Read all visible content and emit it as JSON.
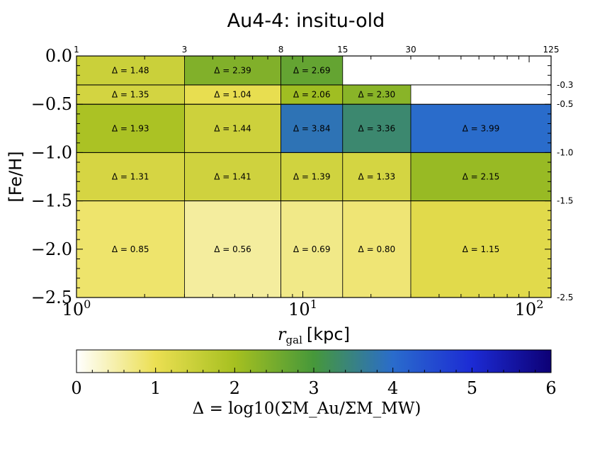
{
  "chart_data": {
    "type": "heatmap",
    "title": "Au4-4:  insitu-old",
    "xlabel": "r_gal [kpc]",
    "xlabel_main": "r",
    "xlabel_sub": "gal",
    "xlabel_unit": "[kpc]",
    "ylabel": "[Fe/H]",
    "x_scale": "log",
    "xlim": [
      1,
      125
    ],
    "ylim": [
      -2.5,
      0.0
    ],
    "x_ticks": [
      {
        "value": 1,
        "base": "10",
        "exp": "0"
      },
      {
        "value": 10,
        "base": "10",
        "exp": "1"
      },
      {
        "value": 100,
        "base": "10",
        "exp": "2"
      }
    ],
    "y_ticks": [
      {
        "value": 0.0,
        "label": "0.0"
      },
      {
        "value": -0.5,
        "label": "−0.5"
      },
      {
        "value": -1.0,
        "label": "−1.0"
      },
      {
        "value": -1.5,
        "label": "−1.5"
      },
      {
        "value": -2.0,
        "label": "−2.0"
      },
      {
        "value": -2.5,
        "label": "−2.5"
      }
    ],
    "top_edges": [
      {
        "value": 1,
        "label": "1"
      },
      {
        "value": 3,
        "label": "3"
      },
      {
        "value": 8,
        "label": "8"
      },
      {
        "value": 15,
        "label": "15"
      },
      {
        "value": 30,
        "label": "30"
      },
      {
        "value": 125,
        "label": "125"
      }
    ],
    "right_edges": [
      {
        "value": -0.3,
        "label": "-0.3"
      },
      {
        "value": -0.5,
        "label": "-0.5"
      },
      {
        "value": -1.0,
        "label": "-1.0"
      },
      {
        "value": -1.5,
        "label": "-1.5"
      },
      {
        "value": -2.5,
        "label": "-2.5"
      }
    ],
    "cells": [
      {
        "x0": 1,
        "x1": 3,
        "y0": -0.3,
        "y1": 0.0,
        "value": 1.48,
        "label": "Δ = 1.48"
      },
      {
        "x0": 3,
        "x1": 8,
        "y0": -0.3,
        "y1": 0.0,
        "value": 2.39,
        "label": "Δ = 2.39"
      },
      {
        "x0": 8,
        "x1": 15,
        "y0": -0.3,
        "y1": 0.0,
        "value": 2.69,
        "label": "Δ = 2.69"
      },
      {
        "x0": 1,
        "x1": 3,
        "y0": -0.5,
        "y1": -0.3,
        "value": 1.35,
        "label": "Δ = 1.35"
      },
      {
        "x0": 3,
        "x1": 8,
        "y0": -0.5,
        "y1": -0.3,
        "value": 1.04,
        "label": "Δ = 1.04"
      },
      {
        "x0": 8,
        "x1": 15,
        "y0": -0.5,
        "y1": -0.3,
        "value": 2.06,
        "label": "Δ = 2.06"
      },
      {
        "x0": 15,
        "x1": 30,
        "y0": -0.5,
        "y1": -0.3,
        "value": 2.3,
        "label": "Δ = 2.30"
      },
      {
        "x0": 1,
        "x1": 3,
        "y0": -1.0,
        "y1": -0.5,
        "value": 1.93,
        "label": "Δ = 1.93"
      },
      {
        "x0": 3,
        "x1": 8,
        "y0": -1.0,
        "y1": -0.5,
        "value": 1.44,
        "label": "Δ = 1.44"
      },
      {
        "x0": 8,
        "x1": 15,
        "y0": -1.0,
        "y1": -0.5,
        "value": 3.84,
        "label": "Δ = 3.84"
      },
      {
        "x0": 15,
        "x1": 30,
        "y0": -1.0,
        "y1": -0.5,
        "value": 3.36,
        "label": "Δ = 3.36"
      },
      {
        "x0": 30,
        "x1": 125,
        "y0": -1.0,
        "y1": -0.5,
        "value": 3.99,
        "label": "Δ = 3.99"
      },
      {
        "x0": 1,
        "x1": 3,
        "y0": -1.5,
        "y1": -1.0,
        "value": 1.31,
        "label": "Δ = 1.31"
      },
      {
        "x0": 3,
        "x1": 8,
        "y0": -1.5,
        "y1": -1.0,
        "value": 1.41,
        "label": "Δ = 1.41"
      },
      {
        "x0": 8,
        "x1": 15,
        "y0": -1.5,
        "y1": -1.0,
        "value": 1.39,
        "label": "Δ = 1.39"
      },
      {
        "x0": 15,
        "x1": 30,
        "y0": -1.5,
        "y1": -1.0,
        "value": 1.33,
        "label": "Δ = 1.33"
      },
      {
        "x0": 30,
        "x1": 125,
        "y0": -1.5,
        "y1": -1.0,
        "value": 2.15,
        "label": "Δ = 2.15"
      },
      {
        "x0": 1,
        "x1": 3,
        "y0": -2.5,
        "y1": -1.5,
        "value": 0.85,
        "label": "Δ = 0.85"
      },
      {
        "x0": 3,
        "x1": 8,
        "y0": -2.5,
        "y1": -1.5,
        "value": 0.56,
        "label": "Δ = 0.56"
      },
      {
        "x0": 8,
        "x1": 15,
        "y0": -2.5,
        "y1": -1.5,
        "value": 0.69,
        "label": "Δ = 0.69"
      },
      {
        "x0": 15,
        "x1": 30,
        "y0": -2.5,
        "y1": -1.5,
        "value": 0.8,
        "label": "Δ = 0.80"
      },
      {
        "x0": 30,
        "x1": 125,
        "y0": -2.5,
        "y1": -1.5,
        "value": 1.15,
        "label": "Δ = 1.15"
      }
    ],
    "colorbar": {
      "range": [
        0,
        6
      ],
      "ticks": [
        "0",
        "1",
        "2",
        "3",
        "4",
        "5",
        "6"
      ],
      "label": "Δ = log10(ΣM_Au/ΣM_MW)",
      "colormap": [
        {
          "value": 0,
          "color": "#ffffff"
        },
        {
          "value": 1,
          "color": "#ebdf52"
        },
        {
          "value": 2,
          "color": "#a6c020"
        },
        {
          "value": 3,
          "color": "#46983a"
        },
        {
          "value": 4,
          "color": "#2a6ccc"
        },
        {
          "value": 5,
          "color": "#1c2bd4"
        },
        {
          "value": 6,
          "color": "#0d0075"
        }
      ]
    }
  }
}
